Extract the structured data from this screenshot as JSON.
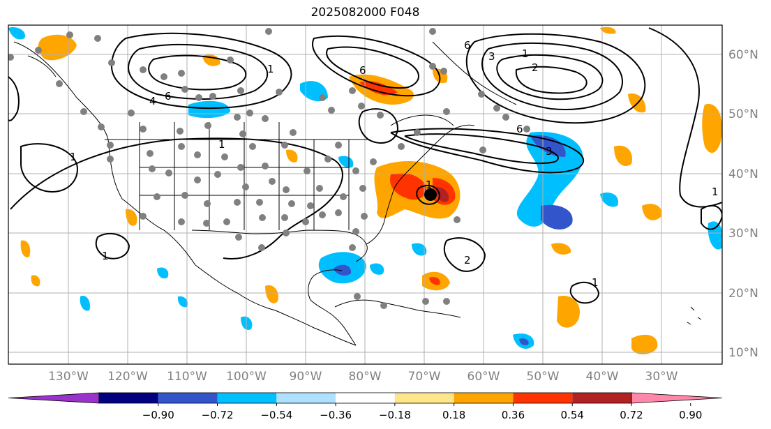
{
  "title": "2025082000 F048",
  "map": {
    "longitude_labels": [
      "130°W",
      "120°W",
      "110°W",
      "100°W",
      "90°W",
      "80°W",
      "70°W",
      "60°W",
      "50°W",
      "40°W",
      "30°W"
    ],
    "latitude_labels": [
      "60°N",
      "50°N",
      "40°N",
      "30°N",
      "20°N",
      "10°N"
    ],
    "storm_marker": {
      "lon": -69.5,
      "lat": 36.5
    },
    "contour_labels": [
      "1",
      "1",
      "1",
      "1",
      "1",
      "1",
      "2",
      "2",
      "3",
      "3",
      "4",
      "6",
      "6",
      "6",
      "6",
      "1",
      "1"
    ]
  },
  "colorbar": {
    "ticks": [
      "−0.90",
      "−0.72",
      "−0.54",
      "−0.36",
      "−0.18",
      "0.18",
      "0.36",
      "0.54",
      "0.72",
      "0.90"
    ],
    "colors": [
      "#9933cc",
      "#000080",
      "#3355cc",
      "#00bfff",
      "#aee0ff",
      "#ffffff",
      "#ffe58a",
      "#ffa500",
      "#ff3300",
      "#b22222",
      "#ff88aa"
    ]
  }
}
